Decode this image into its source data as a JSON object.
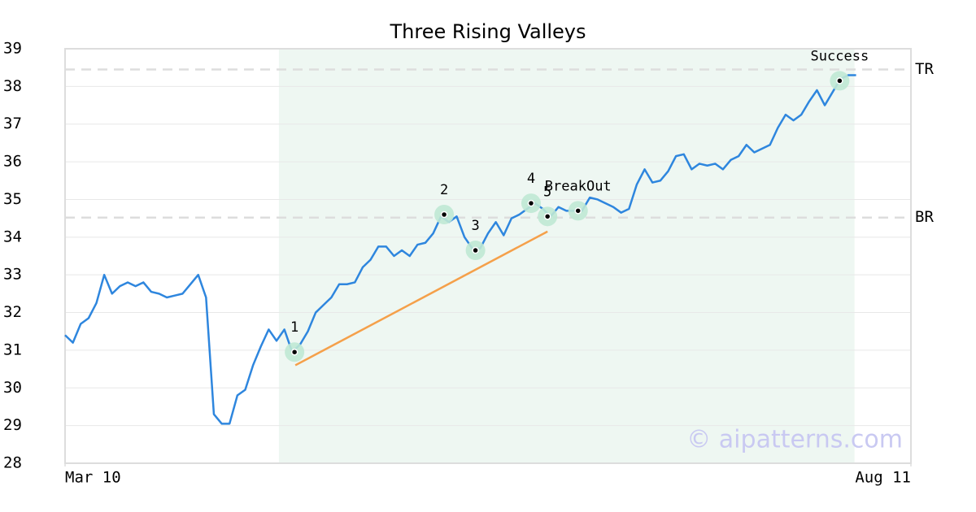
{
  "chart_data": {
    "type": "line",
    "title": "Three Rising Valleys",
    "x": [
      0,
      1,
      2,
      3,
      4,
      5,
      6,
      7,
      8,
      9,
      10,
      11,
      12,
      13,
      14,
      15,
      16,
      17,
      18,
      19,
      20,
      21,
      22,
      23,
      24,
      25,
      26,
      27,
      28,
      29,
      30,
      31,
      32,
      33,
      34,
      35,
      36,
      37,
      38,
      39,
      40,
      41,
      42,
      43,
      44,
      45,
      46,
      47,
      48,
      49,
      50,
      51,
      52,
      53,
      54,
      55,
      56,
      57,
      58,
      59,
      60,
      61,
      62,
      63,
      64,
      65,
      66,
      67,
      68,
      69,
      70,
      71,
      72,
      73,
      74,
      75,
      76,
      77,
      78,
      79,
      80,
      81,
      82,
      83,
      84,
      85,
      86,
      87,
      88,
      89,
      90,
      91,
      92,
      93,
      94,
      95,
      96,
      97,
      98,
      99,
      100,
      101
    ],
    "series": [
      {
        "color": "#2e86de",
        "values": [
          31.4,
          31.2,
          31.7,
          31.85,
          32.25,
          33.0,
          32.5,
          32.7,
          32.8,
          32.7,
          32.8,
          32.55,
          32.5,
          32.4,
          32.45,
          32.5,
          32.75,
          33.0,
          32.4,
          29.3,
          29.05,
          29.05,
          29.8,
          29.95,
          30.6,
          31.1,
          31.55,
          31.25,
          31.55,
          30.95,
          31.15,
          31.5,
          32.0,
          32.2,
          32.4,
          32.75,
          32.75,
          32.8,
          33.2,
          33.4,
          33.75,
          33.75,
          33.5,
          33.65,
          33.5,
          33.8,
          33.85,
          34.1,
          34.55,
          34.4,
          34.55,
          34.0,
          33.7,
          33.7,
          34.1,
          34.4,
          34.05,
          34.5,
          34.6,
          34.75,
          34.9,
          34.75,
          34.55,
          34.8,
          34.7,
          34.7,
          34.7,
          35.05,
          35.0,
          34.9,
          34.8,
          34.65,
          34.75,
          35.4,
          35.8,
          35.45,
          35.5,
          35.75,
          36.15,
          36.2,
          35.8,
          35.95,
          35.9,
          35.95,
          35.8,
          36.05,
          36.15,
          36.45,
          36.25,
          36.35,
          36.45,
          36.9,
          37.25,
          37.1,
          37.25,
          37.6,
          37.9,
          37.5,
          37.85,
          38.2,
          38.3,
          38.3
        ]
      }
    ],
    "xlim": [
      0,
      108
    ],
    "xticks": [
      {
        "value": 0,
        "label": "Mar 10"
      },
      {
        "value": 108,
        "label": "Aug 11"
      }
    ],
    "ylim": [
      28,
      39
    ],
    "yticks": [
      28,
      29,
      30,
      31,
      32,
      33,
      34,
      35,
      36,
      37,
      38,
      39
    ],
    "grid": true,
    "highlight": {
      "x": [
        27.3,
        100.8
      ],
      "color": "#eef7f2"
    },
    "trendline": {
      "x": [
        29.4,
        61.6
      ],
      "y": [
        30.6,
        34.15
      ],
      "color": "#f5a04a"
    },
    "levels": [
      {
        "label": "TR",
        "value": 38.45
      },
      {
        "label": "BR",
        "value": 34.52
      }
    ],
    "points": [
      {
        "label": "1",
        "x": 29.3,
        "y": 30.95
      },
      {
        "label": "2",
        "x": 48.4,
        "y": 34.6
      },
      {
        "label": "3",
        "x": 52.4,
        "y": 33.65
      },
      {
        "label": "4",
        "x": 59.5,
        "y": 34.9
      },
      {
        "label": "5",
        "x": 61.6,
        "y": 34.55
      },
      {
        "label": "BreakOut",
        "x": 65.5,
        "y": 34.7
      },
      {
        "label": "Success",
        "x": 98.9,
        "y": 38.15
      }
    ],
    "watermark": "© aipatterns.com"
  }
}
